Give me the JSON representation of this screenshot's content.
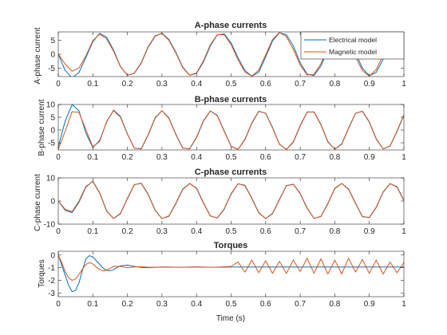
{
  "chart_data": [
    {
      "type": "line",
      "title": "A-phase currents",
      "xlabel": "",
      "ylabel": "A-phase current",
      "xlim": [
        0,
        1
      ],
      "ylim": [
        -8,
        8
      ],
      "xticks": [
        0,
        0.1,
        0.2,
        0.3,
        0.4,
        0.5,
        0.6,
        0.7,
        0.8,
        0.9,
        1
      ],
      "xtick_labels": [
        "0",
        "0.1",
        "0.2",
        "0.3",
        "0.4",
        "0.5",
        "0.6",
        "0.7",
        "0.8",
        "0.9",
        "1"
      ],
      "yticks": [
        -5,
        0,
        5
      ],
      "ytick_labels": [
        "-5",
        "0",
        "5"
      ],
      "grid": false,
      "legend": {
        "placement": "top-right",
        "entries": [
          "Electrical model",
          "Magnetic model"
        ]
      },
      "series": [
        {
          "name": "Electrical model",
          "color": "#0072BD",
          "x": [
            0,
            0.02,
            0.04,
            0.06,
            0.08,
            0.1,
            0.12,
            0.14,
            0.16,
            0.18,
            0.2,
            0.22,
            0.24,
            0.26,
            0.28,
            0.3,
            0.32,
            0.34,
            0.36,
            0.38,
            0.4,
            0.42,
            0.44,
            0.46,
            0.48,
            0.5,
            0.52,
            0.54,
            0.56,
            0.58,
            0.6,
            0.62,
            0.64,
            0.66,
            0.68,
            0.7,
            0.72,
            0.74,
            0.76,
            0.78,
            0.8,
            0.82,
            0.84,
            0.86,
            0.88,
            0.9,
            0.92,
            0.94,
            0.96,
            0.98,
            1
          ],
          "y": [
            0,
            -5.8,
            -8.5,
            -6.5,
            -1.2,
            4.5,
            7.5,
            6.1,
            1.5,
            -4.4,
            -7.5,
            -6.9,
            -3.2,
            2.5,
            6.4,
            7.6,
            5.3,
            0.8,
            -4.6,
            -7.5,
            -6.9,
            -2.8,
            3.0,
            6.9,
            7.3,
            4.1,
            -1.2,
            -5.8,
            -7.9,
            -6.4,
            -1.0,
            4.8,
            7.7,
            7.0,
            3.0,
            -3.0,
            -7.1,
            -7.6,
            -4.2,
            1.6,
            6.3,
            7.8,
            5.5,
            0.4,
            -5.0,
            -7.7,
            -6.5,
            -1.8,
            3.9,
            7.3,
            7.2
          ]
        },
        {
          "name": "Magnetic model",
          "color": "#D95319",
          "x": [
            0,
            0.02,
            0.04,
            0.06,
            0.08,
            0.1,
            0.12,
            0.14,
            0.16,
            0.18,
            0.2,
            0.22,
            0.24,
            0.26,
            0.28,
            0.3,
            0.32,
            0.34,
            0.36,
            0.38,
            0.4,
            0.42,
            0.44,
            0.46,
            0.48,
            0.5,
            0.52,
            0.54,
            0.56,
            0.58,
            0.6,
            0.62,
            0.64,
            0.66,
            0.68,
            0.7,
            0.72,
            0.74,
            0.76,
            0.78,
            0.8,
            0.82,
            0.84,
            0.86,
            0.88,
            0.9,
            0.92,
            0.94,
            0.96,
            0.98,
            1
          ],
          "y": [
            0,
            -3.5,
            -6.1,
            -4.9,
            -0.6,
            4.9,
            7.2,
            5.5,
            1.1,
            -4.5,
            -7.5,
            -6.8,
            -3.0,
            2.7,
            6.6,
            7.5,
            5.0,
            0.5,
            -4.8,
            -7.5,
            -6.7,
            -2.4,
            3.4,
            7.0,
            7.0,
            3.5,
            -2.0,
            -6.4,
            -7.8,
            -5.7,
            -0.2,
            5.3,
            7.8,
            6.3,
            1.8,
            -3.9,
            -7.4,
            -7.2,
            -3.4,
            2.4,
            6.8,
            7.6,
            4.6,
            -0.9,
            -5.9,
            -7.8,
            -5.5,
            -0.4,
            5.0,
            7.7,
            6.2
          ]
        }
      ]
    },
    {
      "type": "line",
      "title": "B-phase currents",
      "xlabel": "",
      "ylabel": "B-phase current",
      "xlim": [
        0,
        1
      ],
      "ylim": [
        -7.8,
        10
      ],
      "xticks": [
        0,
        0.1,
        0.2,
        0.3,
        0.4,
        0.5,
        0.6,
        0.7,
        0.8,
        0.9,
        1
      ],
      "xtick_labels": [
        "0",
        "0.1",
        "0.2",
        "0.3",
        "0.4",
        "0.5",
        "0.6",
        "0.7",
        "0.8",
        "0.9",
        "1"
      ],
      "yticks": [
        -5,
        0,
        5,
        10
      ],
      "ytick_labels": [
        "-5",
        "0",
        "5",
        "10"
      ],
      "grid": false,
      "series": [
        {
          "color": "#0072BD",
          "x": [
            0,
            0.02,
            0.04,
            0.06,
            0.08,
            0.1,
            0.12,
            0.14,
            0.16,
            0.18,
            0.2,
            0.22,
            0.24,
            0.26,
            0.28,
            0.3,
            0.32,
            0.34,
            0.36,
            0.38,
            0.4,
            0.42,
            0.44,
            0.46,
            0.48,
            0.5,
            0.52,
            0.54,
            0.56,
            0.58,
            0.6,
            0.62,
            0.64,
            0.66,
            0.68,
            0.7,
            0.72,
            0.74,
            0.76,
            0.78,
            0.8,
            0.82,
            0.84,
            0.86,
            0.88,
            0.9,
            0.92,
            0.94,
            0.96,
            0.98,
            1
          ],
          "y": [
            -6.5,
            3.5,
            10.0,
            7.5,
            -1.2,
            -6.9,
            -4.0,
            3.2,
            7.8,
            5.3,
            -1.5,
            -7.1,
            -7.4,
            -2.0,
            4.6,
            7.6,
            4.8,
            -1.6,
            -7.0,
            -7.4,
            -3.0,
            3.5,
            7.4,
            5.8,
            -0.3,
            -6.3,
            -7.6,
            -3.8,
            2.6,
            7.3,
            6.6,
            1.0,
            -5.5,
            -7.6,
            -4.8,
            1.6,
            7.0,
            7.1,
            2.2,
            -4.5,
            -7.5,
            -5.6,
            0.6,
            6.5,
            7.4,
            3.2,
            -3.4,
            -7.4,
            -6.3,
            -0.6,
            5.8
          ]
        },
        {
          "color": "#D95319",
          "x": [
            0,
            0.02,
            0.04,
            0.06,
            0.08,
            0.1,
            0.12,
            0.14,
            0.16,
            0.18,
            0.2,
            0.22,
            0.24,
            0.26,
            0.28,
            0.3,
            0.32,
            0.34,
            0.36,
            0.38,
            0.4,
            0.42,
            0.44,
            0.46,
            0.48,
            0.5,
            0.52,
            0.54,
            0.56,
            0.58,
            0.6,
            0.62,
            0.64,
            0.66,
            0.68,
            0.7,
            0.72,
            0.74,
            0.76,
            0.78,
            0.8,
            0.82,
            0.84,
            0.86,
            0.88,
            0.9,
            0.92,
            0.94,
            0.96,
            0.98,
            1
          ],
          "y": [
            -7.5,
            -0.5,
            7.2,
            6.9,
            0.1,
            -6.6,
            -4.4,
            3.4,
            7.6,
            5.0,
            -1.6,
            -7.1,
            -7.3,
            -1.8,
            4.8,
            7.6,
            4.6,
            -1.8,
            -7.1,
            -7.3,
            -2.8,
            3.7,
            7.5,
            5.6,
            -0.5,
            -6.4,
            -7.6,
            -3.6,
            2.8,
            7.4,
            6.5,
            0.8,
            -5.6,
            -7.6,
            -4.6,
            1.8,
            7.1,
            7.0,
            2.0,
            -4.7,
            -7.5,
            -5.4,
            0.8,
            6.6,
            7.3,
            3.0,
            -3.6,
            -7.4,
            -6.2,
            -0.4,
            6.0
          ]
        }
      ]
    },
    {
      "type": "line",
      "title": "C-phase currents",
      "xlabel": "",
      "ylabel": "C-phase current",
      "xlim": [
        0,
        1
      ],
      "ylim": [
        -10,
        10
      ],
      "xticks": [
        0,
        0.1,
        0.2,
        0.3,
        0.4,
        0.5,
        0.6,
        0.7,
        0.8,
        0.9,
        1
      ],
      "xtick_labels": [
        "0",
        "0.1",
        "0.2",
        "0.3",
        "0.4",
        "0.5",
        "0.6",
        "0.7",
        "0.8",
        "0.9",
        "1"
      ],
      "yticks": [
        -10,
        0,
        10
      ],
      "ytick_labels": [
        "-10",
        "0",
        "10"
      ],
      "grid": false,
      "series": [
        {
          "color": "#0072BD",
          "x": [
            0,
            0.02,
            0.04,
            0.06,
            0.08,
            0.1,
            0.12,
            0.14,
            0.16,
            0.18,
            0.2,
            0.22,
            0.24,
            0.26,
            0.28,
            0.3,
            0.32,
            0.34,
            0.36,
            0.38,
            0.4,
            0.42,
            0.44,
            0.46,
            0.48,
            0.5,
            0.52,
            0.54,
            0.56,
            0.58,
            0.6,
            0.62,
            0.64,
            0.66,
            0.68,
            0.7,
            0.72,
            0.74,
            0.76,
            0.78,
            0.8,
            0.82,
            0.84,
            0.86,
            0.88,
            0.9,
            0.92,
            0.94,
            0.96,
            0.98,
            1
          ],
          "y": [
            0,
            -4.0,
            -5.0,
            -0.5,
            6.0,
            8.6,
            3.5,
            -4.2,
            -7.6,
            -5.5,
            1.0,
            7.0,
            7.7,
            3.0,
            -3.8,
            -7.6,
            -6.6,
            -1.2,
            5.0,
            7.6,
            5.6,
            -0.7,
            -6.4,
            -7.4,
            -3.6,
            3.0,
            7.4,
            6.8,
            1.3,
            -5.0,
            -7.6,
            -5.5,
            0.6,
            6.6,
            7.3,
            3.3,
            -3.0,
            -7.5,
            -6.7,
            -1.2,
            5.3,
            7.6,
            5.2,
            -0.9,
            -6.7,
            -7.2,
            -2.8,
            3.8,
            7.5,
            6.2,
            0.3
          ]
        },
        {
          "color": "#D95319",
          "x": [
            0,
            0.02,
            0.04,
            0.06,
            0.08,
            0.1,
            0.12,
            0.14,
            0.16,
            0.18,
            0.2,
            0.22,
            0.24,
            0.26,
            0.28,
            0.3,
            0.32,
            0.34,
            0.36,
            0.38,
            0.4,
            0.42,
            0.44,
            0.46,
            0.48,
            0.5,
            0.52,
            0.54,
            0.56,
            0.58,
            0.6,
            0.62,
            0.64,
            0.66,
            0.68,
            0.7,
            0.72,
            0.74,
            0.76,
            0.78,
            0.8,
            0.82,
            0.84,
            0.86,
            0.88,
            0.9,
            0.92,
            0.94,
            0.96,
            0.98,
            1
          ],
          "y": [
            0,
            -3.6,
            -4.6,
            0.0,
            6.3,
            8.4,
            3.3,
            -4.4,
            -7.6,
            -5.3,
            1.2,
            7.1,
            7.6,
            2.8,
            -4.0,
            -7.6,
            -6.4,
            -1.0,
            5.2,
            7.6,
            5.4,
            -0.9,
            -6.5,
            -7.3,
            -3.4,
            3.2,
            7.5,
            6.6,
            1.1,
            -5.2,
            -7.6,
            -5.3,
            0.8,
            6.7,
            7.2,
            3.1,
            -3.2,
            -7.5,
            -6.6,
            -1.0,
            5.5,
            7.6,
            5.0,
            -1.1,
            -6.8,
            -7.1,
            -2.6,
            4.0,
            7.5,
            6.0,
            0.1
          ]
        }
      ]
    },
    {
      "type": "line",
      "title": "Torques",
      "xlabel": "Time (s)",
      "ylabel": "Torques",
      "xlim": [
        0,
        1
      ],
      "ylim": [
        -3.3,
        0.3
      ],
      "xticks": [
        0,
        0.1,
        0.2,
        0.3,
        0.4,
        0.5,
        0.6,
        0.7,
        0.8,
        0.9,
        1
      ],
      "xtick_labels": [
        "0",
        "0.1",
        "0.2",
        "0.3",
        "0.4",
        "0.5",
        "0.6",
        "0.7",
        "0.8",
        "0.9",
        "1"
      ],
      "yticks": [
        -3,
        -2,
        -1,
        0
      ],
      "ytick_labels": [
        "-3",
        "-2",
        "-1",
        "0"
      ],
      "grid": false,
      "series": [
        {
          "color": "#0072BD",
          "x": [
            0,
            0.01,
            0.02,
            0.03,
            0.04,
            0.05,
            0.06,
            0.07,
            0.08,
            0.09,
            0.1,
            0.11,
            0.12,
            0.13,
            0.14,
            0.15,
            0.16,
            0.18,
            0.2,
            0.22,
            0.24,
            0.26,
            0.28,
            0.3,
            0.35,
            0.4,
            0.45,
            0.5,
            0.55,
            0.6,
            0.65,
            0.7,
            0.75,
            0.8,
            0.85,
            0.9,
            0.95,
            1
          ],
          "y": [
            0,
            -0.8,
            -1.6,
            -2.4,
            -2.9,
            -2.8,
            -2.2,
            -1.2,
            -0.3,
            -0.05,
            -0.15,
            -0.45,
            -0.75,
            -1.05,
            -1.2,
            -1.25,
            -1.15,
            -0.85,
            -0.8,
            -0.9,
            -0.98,
            -1.0,
            -0.97,
            -0.95,
            -0.96,
            -0.95,
            -0.96,
            -0.95,
            -0.95,
            -0.95,
            -0.95,
            -0.95,
            -0.95,
            -0.95,
            -0.95,
            -0.95,
            -0.95,
            -0.95
          ]
        },
        {
          "color": "#D95319",
          "x": [
            0,
            0.01,
            0.02,
            0.03,
            0.04,
            0.05,
            0.06,
            0.07,
            0.08,
            0.09,
            0.1,
            0.11,
            0.12,
            0.13,
            0.14,
            0.15,
            0.16,
            0.18,
            0.2,
            0.22,
            0.24,
            0.26,
            0.28,
            0.3,
            0.35,
            0.4,
            0.45,
            0.5,
            0.52,
            0.54,
            0.56,
            0.58,
            0.6,
            0.62,
            0.64,
            0.66,
            0.68,
            0.7,
            0.72,
            0.74,
            0.76,
            0.78,
            0.8,
            0.82,
            0.84,
            0.86,
            0.88,
            0.9,
            0.92,
            0.94,
            0.96,
            0.98,
            1
          ],
          "y": [
            0,
            -0.6,
            -1.3,
            -1.8,
            -2.0,
            -1.9,
            -1.55,
            -1.1,
            -0.75,
            -0.6,
            -0.7,
            -0.95,
            -1.15,
            -1.25,
            -1.2,
            -1.05,
            -0.9,
            -0.9,
            -1.0,
            -0.95,
            -0.92,
            -0.96,
            -0.97,
            -0.95,
            -0.97,
            -0.95,
            -0.97,
            -0.9,
            -0.55,
            -1.35,
            -0.4,
            -1.4,
            -0.45,
            -1.45,
            -0.5,
            -1.45,
            -0.4,
            -1.3,
            -0.25,
            -1.45,
            -0.3,
            -1.5,
            -0.4,
            -1.5,
            -0.25,
            -1.35,
            -0.35,
            -1.45,
            -0.4,
            -1.5,
            -0.55,
            -1.4,
            -0.6
          ]
        }
      ]
    }
  ]
}
